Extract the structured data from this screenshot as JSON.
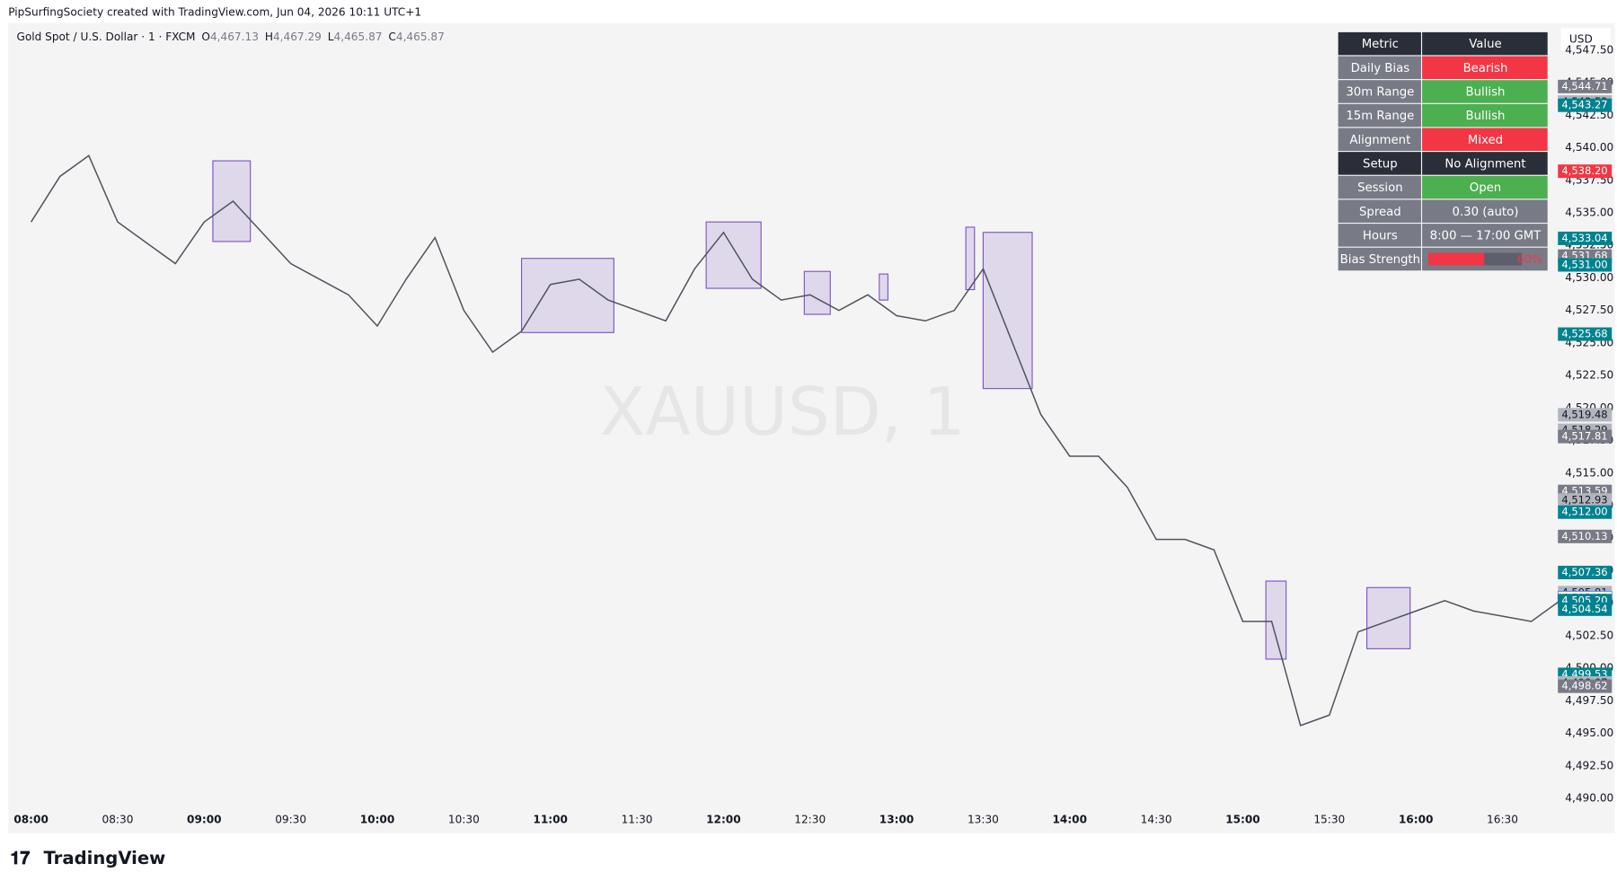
{
  "header": {
    "credit": "PipSurfingSociety created with TradingView.com, Jun 04, 2026 10:11 UTC+1",
    "symbol": "Gold Spot / U.S. Dollar · 1 · FXCM",
    "ohlc": [
      {
        "key": "O",
        "value": "4,467.13"
      },
      {
        "key": "H",
        "value": "4,467.29"
      },
      {
        "key": "L",
        "value": "4,465.87"
      },
      {
        "key": "C",
        "value": "4,465.87"
      }
    ],
    "currency": "USD",
    "watermark": "XAUUSD, 1"
  },
  "footer": {
    "brand": "TradingView"
  },
  "chart_data": {
    "type": "line",
    "x": [
      "08:00",
      "08:10",
      "08:20",
      "08:30",
      "08:40",
      "08:50",
      "09:00",
      "09:10",
      "09:20",
      "09:30",
      "09:40",
      "09:50",
      "10:00",
      "10:10",
      "10:20",
      "10:30",
      "10:40",
      "10:50",
      "11:00",
      "11:10",
      "11:20",
      "11:30",
      "11:40",
      "11:50",
      "12:00",
      "12:10",
      "12:20",
      "12:30",
      "12:40",
      "12:50",
      "13:00",
      "13:10",
      "13:20",
      "13:30",
      "13:40",
      "13:50",
      "14:00",
      "14:10",
      "14:20",
      "14:30",
      "14:40",
      "14:50",
      "15:00",
      "15:10",
      "15:20",
      "15:30",
      "15:40",
      "15:50",
      "16:00",
      "16:10",
      "16:20",
      "16:30",
      "16:40",
      "16:50"
    ],
    "series": [
      {
        "color": "#50535e",
        "values": [
          4534.3,
          4537.8,
          4539.4,
          4534.3,
          4532.7,
          4531.1,
          4534.3,
          4535.9,
          4533.5,
          4531.1,
          4529.9,
          4528.7,
          4526.3,
          4529.9,
          4533.1,
          4527.5,
          4524.3,
          4525.9,
          4529.5,
          4529.9,
          4528.3,
          4527.5,
          4526.7,
          4530.7,
          4533.5,
          4529.9,
          4528.3,
          4528.7,
          4527.5,
          4528.7,
          4527.1,
          4526.7,
          4527.5,
          4530.7,
          4525.1,
          4519.5,
          4516.3,
          4516.3,
          4513.9,
          4509.9,
          4509.9,
          4509.1,
          4503.6,
          4503.6,
          4495.6,
          4496.4,
          4502.8,
          4503.6,
          4504.4,
          4505.2,
          4504.4,
          4504.0,
          4503.6,
          4505.2
        ]
      }
    ],
    "zones": [
      {
        "start": "09:03",
        "end": "09:16",
        "high": 4539.0,
        "low": 4532.8
      },
      {
        "start": "10:50",
        "end": "11:22",
        "high": 4531.5,
        "low": 4525.8
      },
      {
        "start": "11:54",
        "end": "12:13",
        "high": 4534.3,
        "low": 4529.2
      },
      {
        "start": "12:28",
        "end": "12:37",
        "high": 4530.5,
        "low": 4527.2
      },
      {
        "start": "12:54",
        "end": "12:57",
        "high": 4530.3,
        "low": 4528.3
      },
      {
        "start": "13:24",
        "end": "13:27",
        "high": 4533.9,
        "low": 4529.1
      },
      {
        "start": "13:30",
        "end": "13:47",
        "high": 4533.5,
        "low": 4521.5
      },
      {
        "start": "15:08",
        "end": "15:15",
        "high": 4506.7,
        "low": 4500.7
      },
      {
        "start": "15:43",
        "end": "15:58",
        "high": 4506.2,
        "low": 4501.5
      }
    ],
    "zone_color": "#7e57c2",
    "xticks": [
      "08:00",
      "08:30",
      "09:00",
      "09:30",
      "10:00",
      "10:30",
      "11:00",
      "11:30",
      "12:00",
      "12:30",
      "13:00",
      "13:30",
      "14:00",
      "14:30",
      "15:00",
      "15:30",
      "16:00",
      "16:30"
    ],
    "ylim": [
      4487.4,
      4549.6
    ],
    "yticks": [
      {
        "value": 4490,
        "label": "4,490.00"
      },
      {
        "value": 4492.5,
        "label": "4,492.50"
      },
      {
        "value": 4495,
        "label": "4,495.00"
      },
      {
        "value": 4497.5,
        "label": "4,497.50"
      },
      {
        "value": 4500,
        "label": "4,500.00"
      },
      {
        "value": 4502.5,
        "label": "4,502.50"
      },
      {
        "value": 4505,
        "label": "4,505.00"
      },
      {
        "value": 4507.5,
        "label": "4,507.50"
      },
      {
        "value": 4510,
        "label": "4,510.00"
      },
      {
        "value": 4512.5,
        "label": "4,512.50"
      },
      {
        "value": 4515,
        "label": "4,515.00"
      },
      {
        "value": 4517.5,
        "label": "4,517.50"
      },
      {
        "value": 4520,
        "label": "4,520.00"
      },
      {
        "value": 4522.5,
        "label": "4,522.50"
      },
      {
        "value": 4525,
        "label": "4,525.00"
      },
      {
        "value": 4527.5,
        "label": "4,527.50"
      },
      {
        "value": 4530,
        "label": "4,530.00"
      },
      {
        "value": 4532.5,
        "label": "4,532.50"
      },
      {
        "value": 4535,
        "label": "4,535.00"
      },
      {
        "value": 4537.5,
        "label": "4,537.50"
      },
      {
        "value": 4540,
        "label": "4,540.00"
      },
      {
        "value": 4542.5,
        "label": "4,542.50"
      },
      {
        "value": 4545,
        "label": "4,545.00"
      },
      {
        "value": 4547.5,
        "label": "4,547.50"
      }
    ],
    "price_labels": [
      {
        "value": 4544.71,
        "label": "4,544.71",
        "color": "#787b86"
      },
      {
        "value": 4543.52,
        "label": "4,543.52",
        "color": "#b2b5be"
      },
      {
        "value": 4543.27,
        "label": "4,543.27",
        "color": "#00838f"
      },
      {
        "value": 4538.2,
        "label": "4,538.20",
        "color": "#f23645"
      },
      {
        "value": 4533.04,
        "label": "4,533.04",
        "color": "#00838f"
      },
      {
        "value": 4531.68,
        "label": "4,531.68",
        "color": "#787b86"
      },
      {
        "value": 4531.0,
        "label": "4,531.00",
        "color": "#00838f"
      },
      {
        "value": 4525.68,
        "label": "4,525.68",
        "color": "#00838f"
      },
      {
        "value": 4519.48,
        "label": "4,519.48",
        "color": "#b2b5be"
      },
      {
        "value": 4518.29,
        "label": "4,518.29",
        "color": "#b2b5be"
      },
      {
        "value": 4517.81,
        "label": "4,517.81",
        "color": "#787b86"
      },
      {
        "value": 4513.59,
        "label": "4,513.59",
        "color": "#787b86"
      },
      {
        "value": 4512.93,
        "label": "4,512.93",
        "color": "#b2b5be"
      },
      {
        "value": 4512.0,
        "label": "4,512.00",
        "color": "#00838f"
      },
      {
        "value": 4510.13,
        "label": "4,510.13",
        "color": "#787b86"
      },
      {
        "value": 4507.36,
        "label": "4,507.36",
        "color": "#00838f"
      },
      {
        "value": 4505.81,
        "label": "4,505.81",
        "color": "#b2b5be"
      },
      {
        "value": 4505.4,
        "label": "4,505.40",
        "color": "#ffffff"
      },
      {
        "value": 4505.2,
        "label": "4,505.20",
        "color": "#00838f"
      },
      {
        "value": 4504.54,
        "label": "4,504.54",
        "color": "#00838f"
      },
      {
        "value": 4499.53,
        "label": "4,499.53",
        "color": "#00838f"
      },
      {
        "value": 4498.87,
        "label": "4,498.87",
        "color": "#b2b5be"
      },
      {
        "value": 4498.62,
        "label": "4,498.62",
        "color": "#787b86"
      }
    ]
  },
  "table": {
    "columns": [
      "Metric",
      "Value"
    ],
    "rows": [
      {
        "metric": "Daily Bias",
        "value": "Bearish",
        "label_color": "#787b86",
        "color": "#f23645"
      },
      {
        "metric": "30m Range",
        "value": "Bullish",
        "label_color": "#787b86",
        "color": "#4caf50"
      },
      {
        "metric": "15m Range",
        "value": "Bullish",
        "label_color": "#787b86",
        "color": "#4caf50"
      },
      {
        "metric": "Alignment",
        "value": "Mixed",
        "label_color": "#787b86",
        "color": "#f23645"
      },
      {
        "metric": "Setup",
        "value": "No Alignment",
        "label_color": "#2a2e39",
        "color": "#2a2e39"
      },
      {
        "metric": "Session",
        "value": "Open",
        "label_color": "#787b86",
        "color": "#4caf50"
      },
      {
        "metric": "Spread",
        "value": "0.30 (auto)",
        "label_color": "#787b86",
        "color": "#787b86"
      },
      {
        "metric": "Hours",
        "value": "8:00 — 17:00 GMT",
        "label_color": "#787b86",
        "color": "#787b86"
      }
    ],
    "strength": {
      "metric": "Bias Strength",
      "value": 60,
      "value_label": "60%",
      "color": "#f23645"
    }
  }
}
